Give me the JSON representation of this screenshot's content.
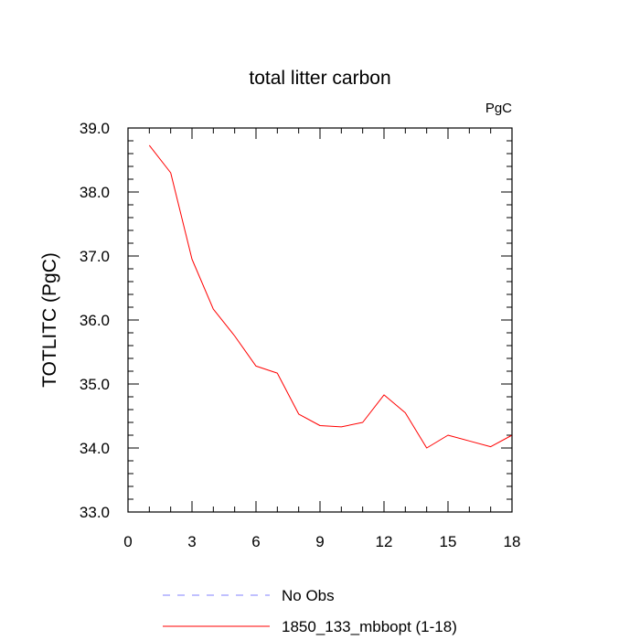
{
  "chart_data": {
    "type": "line",
    "title": "total litter carbon",
    "units_label": "PgC",
    "xlabel": "",
    "ylabel": "TOTLITC  (PgC)",
    "xlim": [
      0,
      18
    ],
    "ylim": [
      33.0,
      39.0
    ],
    "x_ticks": [
      0,
      3,
      6,
      9,
      12,
      15,
      18
    ],
    "x_tick_labels": [
      "0",
      "3",
      "6",
      "9",
      "12",
      "15",
      "18"
    ],
    "y_ticks": [
      33.0,
      34.0,
      35.0,
      36.0,
      37.0,
      38.0,
      39.0
    ],
    "y_tick_labels": [
      "33.0",
      "34.0",
      "35.0",
      "36.0",
      "37.0",
      "38.0",
      "39.0"
    ],
    "grid": false,
    "legend_position": "bottom",
    "legend": [
      {
        "name": "No Obs",
        "color": "#8080ff",
        "style": "dashed"
      },
      {
        "name": "1850_133_mbbopt (1-18)",
        "color": "#ff0000",
        "style": "solid"
      }
    ],
    "series": [
      {
        "name": "1850_133_mbbopt (1-18)",
        "color": "#ff0000",
        "x": [
          1,
          2,
          3,
          4,
          5,
          6,
          7,
          8,
          9,
          10,
          11,
          12,
          13,
          14,
          15,
          16,
          17,
          18
        ],
        "values": [
          38.73,
          38.3,
          36.95,
          36.17,
          35.75,
          35.28,
          35.17,
          34.53,
          34.35,
          34.33,
          34.4,
          34.83,
          34.55,
          34.0,
          34.2,
          34.11,
          34.02,
          34.2
        ]
      }
    ]
  }
}
